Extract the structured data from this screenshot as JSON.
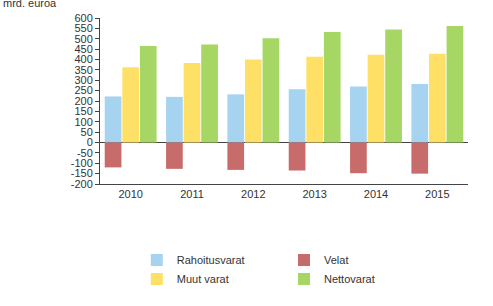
{
  "chart_data": {
    "type": "bar",
    "y_label": "mrd. euroa",
    "categories": [
      "2010",
      "2011",
      "2012",
      "2013",
      "2014",
      "2015"
    ],
    "series": [
      {
        "name": "Rahoitusvarat",
        "color": "#a6d3f0",
        "values": [
          222,
          220,
          232,
          257,
          270,
          282
        ]
      },
      {
        "name": "Velat",
        "color": "#c86b6b",
        "values": [
          -120,
          -127,
          -132,
          -135,
          -148,
          -150
        ]
      },
      {
        "name": "Muut varat",
        "color": "#ffe066",
        "values": [
          363,
          383,
          400,
          413,
          423,
          428
        ]
      },
      {
        "name": "Nettovarat",
        "color": "#a6d765",
        "values": [
          465,
          472,
          502,
          533,
          545,
          562
        ]
      }
    ],
    "ylim": [
      -200,
      600
    ],
    "yticks": [
      -200,
      -150,
      -100,
      -50,
      0,
      50,
      100,
      150,
      200,
      250,
      300,
      350,
      400,
      450,
      500,
      550,
      600
    ],
    "grid": false,
    "legend": "bottom"
  }
}
